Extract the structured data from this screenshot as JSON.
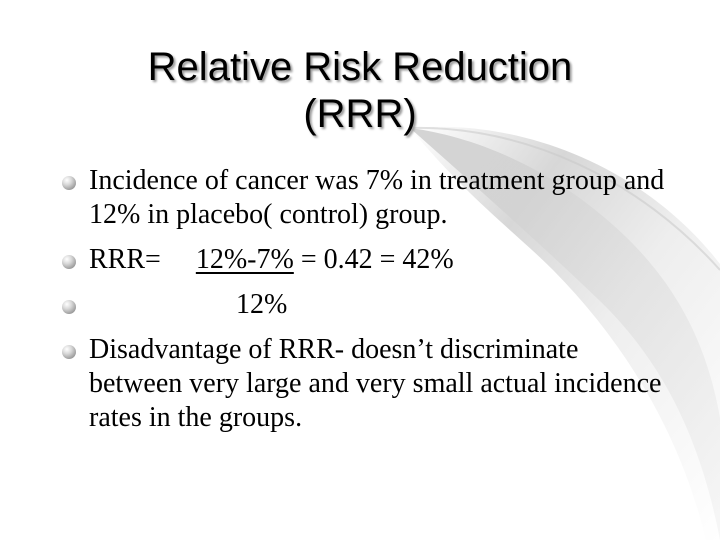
{
  "title": {
    "line1": "Relative Risk Reduction",
    "line2": "(RRR)"
  },
  "bullets": [
    {
      "text": "Incidence of cancer was 7% in treatment group and 12% in placebo( control) group."
    },
    {
      "prefix": "RRR=",
      "numerator": "12%-7%",
      "result": " = 0.42 = 42%"
    },
    {
      "denominator": "12%"
    },
    {
      "text": "Disadvantage of RRR- doesn’t discriminate between very large and very small actual incidence rates in the groups."
    }
  ]
}
